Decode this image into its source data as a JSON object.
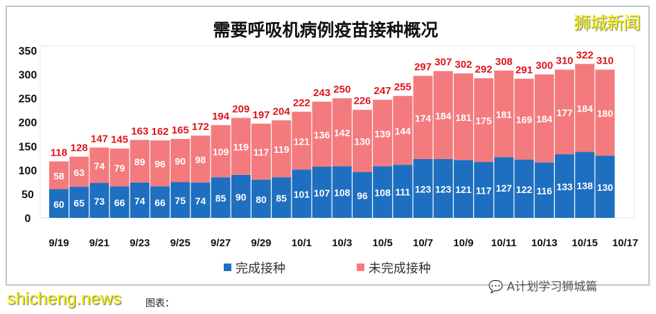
{
  "chart_data": {
    "type": "bar",
    "stacked": true,
    "title": "需要呼吸机病例疫苗接种概况",
    "categories": [
      "9/19",
      "9/20",
      "9/21",
      "9/22",
      "9/23",
      "9/24",
      "9/25",
      "9/26",
      "9/27",
      "9/28",
      "9/29",
      "9/30",
      "10/1",
      "10/2",
      "10/3",
      "10/4",
      "10/5",
      "10/6",
      "10/7",
      "10/8",
      "10/9",
      "10/10",
      "10/11",
      "10/12",
      "10/13",
      "10/14",
      "10/15",
      "10/16"
    ],
    "xticks": [
      "9/19",
      "9/21",
      "9/23",
      "9/25",
      "9/27",
      "9/29",
      "10/1",
      "10/3",
      "10/5",
      "10/7",
      "10/9",
      "10/11",
      "10/13",
      "10/15",
      "10/17"
    ],
    "yticks": [
      0,
      50,
      100,
      150,
      200,
      250,
      300,
      350
    ],
    "ylim": [
      0,
      350
    ],
    "series": [
      {
        "name": "完成接种",
        "color": "#1f6fc0",
        "values": [
          60,
          65,
          73,
          66,
          74,
          66,
          75,
          74,
          85,
          90,
          80,
          85,
          101,
          107,
          108,
          96,
          108,
          111,
          123,
          123,
          121,
          117,
          127,
          122,
          116,
          133,
          138,
          130
        ]
      },
      {
        "name": "未完成接种",
        "color": "#f47b7d",
        "values": [
          58,
          63,
          74,
          79,
          89,
          96,
          90,
          98,
          109,
          119,
          117,
          119,
          121,
          136,
          142,
          130,
          139,
          144,
          174,
          184,
          181,
          175,
          181,
          169,
          184,
          177,
          184,
          180
        ]
      }
    ],
    "totals": [
      118,
      128,
      147,
      145,
      163,
      162,
      165,
      172,
      194,
      209,
      197,
      204,
      222,
      243,
      250,
      226,
      247,
      255,
      297,
      307,
      302,
      292,
      308,
      291,
      300,
      310,
      322,
      310
    ],
    "total_label_color": "#e0141b",
    "grid": false,
    "legend": "bottom"
  },
  "watermarks": {
    "top_right": "狮城新闻",
    "bottom_right": "A计划学习狮城篇",
    "bottom_left": "shicheng.news"
  },
  "source": "图表："
}
